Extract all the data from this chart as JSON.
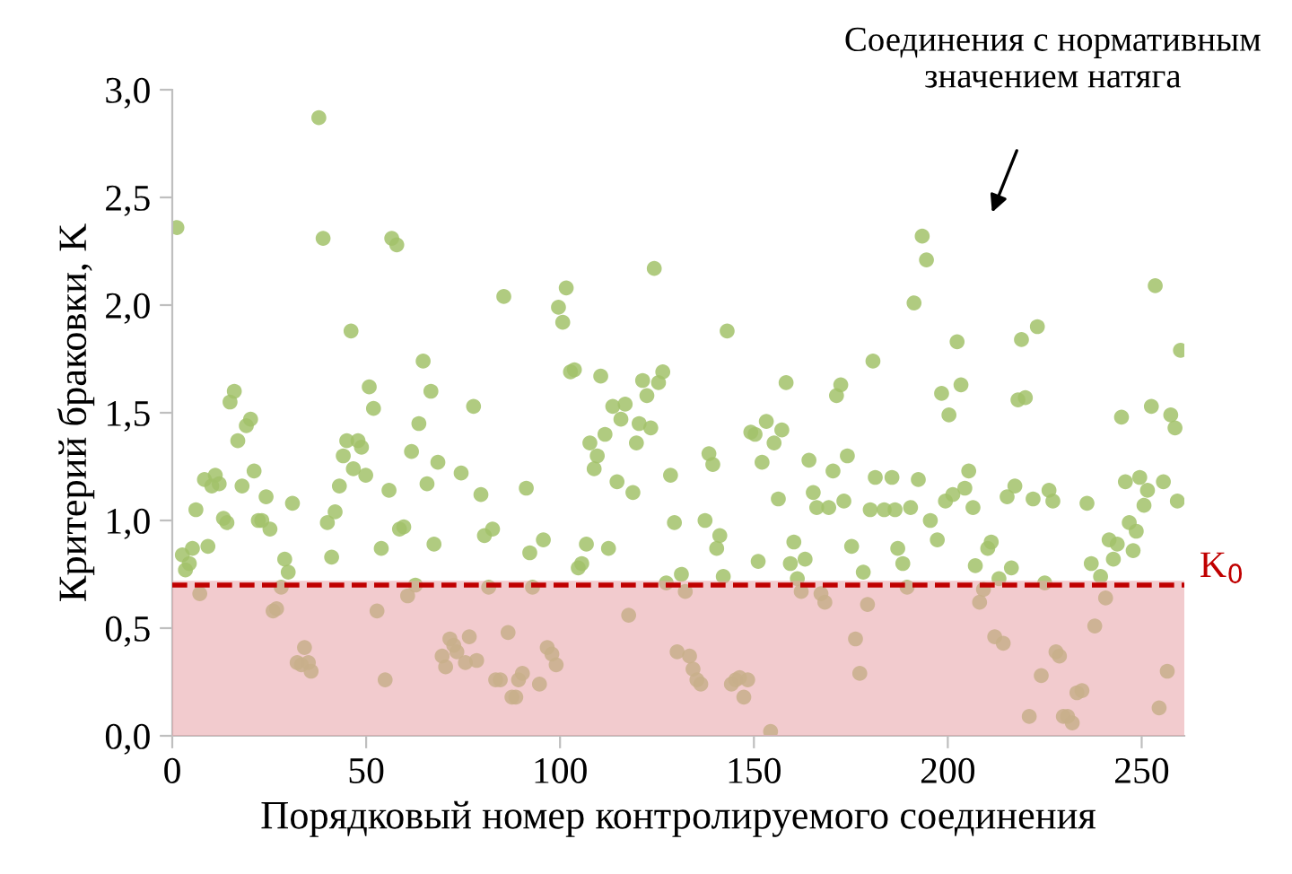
{
  "chart_data": {
    "type": "scatter",
    "xlabel": "Порядковый номер контролируемого соединения",
    "ylabel": "Критерий браковки, K",
    "xlim": [
      0,
      261
    ],
    "xticks": [
      0,
      50,
      100,
      150,
      200,
      250
    ],
    "ylim": [
      0,
      3.0
    ],
    "yticks": [
      {
        "value": 0,
        "label": "0,0"
      },
      {
        "value": 0.5,
        "label": "0,5"
      },
      {
        "value": 1,
        "label": "1,0"
      },
      {
        "value": 1.5,
        "label": "1,5"
      },
      {
        "value": 2,
        "label": "2,0"
      },
      {
        "value": 2.5,
        "label": "2,5"
      },
      {
        "value": 3,
        "label": "3,0"
      }
    ],
    "grid": false,
    "marker": "circle",
    "annotations": [
      "Соединения с нормативным\nзначением натяга"
    ],
    "ref_lines": [
      {
        "axis": "y",
        "value": 0.7,
        "label": "K$_{0}$",
        "color": "#c00000",
        "line_style": "dashed"
      }
    ],
    "bands": [
      {
        "axis": "y",
        "from": 0,
        "to": 0.72,
        "color": "#e8a0a6"
      }
    ],
    "series": [
      {
        "color": "#a2c26a",
        "x": [
          1.2,
          2.6,
          3.4,
          4.4,
          5.2,
          7.1,
          6.1,
          8.3,
          9.2,
          10.2,
          11.1,
          12.1,
          13.2,
          14.1,
          14.9,
          16.0,
          16.9,
          18.0,
          19.1,
          20.2,
          21.1,
          22.2,
          23.1,
          24.2,
          25.2,
          26.0,
          26.9,
          29.0,
          29.9,
          28.1,
          31.0,
          32.2,
          34.1,
          33.3,
          35.1,
          35.8,
          37.8,
          38.9,
          40.0,
          41.1,
          42.0,
          43.1,
          44.1,
          45.0,
          46.1,
          46.7,
          47.9,
          48.8,
          49.9,
          50.8,
          51.9,
          52.8,
          53.9,
          54.9,
          55.9,
          56.6,
          57.9,
          58.6,
          59.7,
          60.7,
          61.7,
          62.7,
          63.6,
          64.7,
          65.7,
          66.7,
          67.5,
          68.5,
          69.6,
          70.5,
          71.6,
          72.6,
          73.4,
          74.5,
          75.6,
          76.6,
          77.7,
          78.5,
          79.6,
          80.5,
          81.6,
          82.6,
          83.4,
          84.6,
          85.5,
          86.6,
          87.6,
          88.6,
          89.3,
          90.3,
          91.3,
          92.2,
          92.9,
          94.7,
          95.7,
          96.7,
          97.9,
          99.0,
          99.6,
          100.7,
          101.6,
          102.7,
          103.7,
          104.7,
          105.6,
          106.8,
          107.7,
          108.8,
          109.6,
          110.5,
          111.6,
          112.5,
          113.6,
          114.7,
          115.7,
          116.8,
          117.7,
          118.8,
          119.7,
          120.4,
          121.3,
          122.4,
          123.4,
          124.3,
          125.4,
          126.5,
          127.4,
          128.5,
          129.5,
          130.2,
          131.3,
          132.3,
          133.4,
          134.3,
          135.3,
          136.3,
          137.4,
          138.4,
          139.4,
          140.4,
          141.2,
          142.1,
          143.1,
          144.2,
          145.3,
          146.3,
          147.4,
          148.4,
          149.2,
          150.3,
          151.1,
          152.1,
          153.2,
          154.3,
          155.2,
          156.3,
          157.2,
          158.3,
          159.4,
          160.3,
          161.2,
          162.2,
          163.2,
          164.2,
          165.3,
          166.2,
          167.3,
          168.3,
          169.3,
          170.4,
          171.3,
          172.4,
          173.2,
          174.1,
          175.2,
          176.2,
          177.3,
          178.2,
          179.3,
          180.0,
          180.7,
          181.3,
          183.6,
          186.4,
          185.6,
          187.1,
          188.4,
          189.5,
          190.4,
          191.3,
          192.4,
          193.4,
          194.5,
          195.5,
          197.3,
          198.4,
          199.4,
          200.3,
          201.3,
          202.4,
          203.4,
          204.4,
          205.4,
          206.5,
          207.1,
          208.2,
          209.2,
          210.3,
          211.2,
          212.1,
          213.2,
          214.3,
          215.3,
          216.4,
          217.3,
          218.1,
          219.0,
          220.0,
          221.0,
          222.0,
          223.1,
          224.1,
          225.0,
          226.1,
          227.1,
          227.9,
          228.8,
          229.8,
          230.9,
          232.1,
          233.3,
          234.6,
          235.9,
          237.0,
          237.9,
          239.4,
          240.7,
          241.6,
          242.7,
          243.7,
          244.8,
          245.8,
          246.8,
          247.8,
          248.6,
          249.5,
          250.6,
          251.5,
          252.5,
          253.5,
          254.5,
          255.6,
          256.6,
          257.5,
          258.6,
          259.2,
          260.0
        ],
        "values": [
          2.36,
          0.84,
          0.77,
          0.8,
          0.87,
          0.66,
          1.05,
          1.19,
          0.88,
          1.16,
          1.21,
          1.17,
          1.01,
          0.99,
          1.55,
          1.6,
          1.37,
          1.16,
          1.44,
          1.47,
          1.23,
          1.0,
          1.0,
          1.11,
          0.96,
          0.58,
          0.59,
          0.82,
          0.76,
          0.69,
          1.08,
          0.34,
          0.41,
          0.33,
          0.34,
          0.3,
          2.87,
          2.31,
          0.99,
          0.83,
          1.04,
          1.16,
          1.3,
          1.37,
          1.88,
          1.24,
          1.37,
          1.34,
          1.21,
          1.62,
          1.52,
          0.58,
          0.87,
          0.26,
          1.14,
          2.31,
          2.28,
          0.96,
          0.97,
          0.65,
          1.32,
          0.7,
          1.45,
          1.74,
          1.17,
          1.6,
          0.89,
          1.27,
          0.37,
          0.32,
          0.45,
          0.42,
          0.39,
          1.22,
          0.34,
          0.46,
          1.53,
          0.35,
          1.12,
          0.93,
          0.69,
          0.96,
          0.26,
          0.26,
          2.04,
          0.48,
          0.18,
          0.18,
          0.26,
          0.29,
          1.15,
          0.85,
          0.69,
          0.24,
          0.91,
          0.41,
          0.38,
          0.33,
          1.99,
          1.92,
          2.08,
          1.69,
          1.7,
          0.78,
          0.8,
          0.89,
          1.36,
          1.24,
          1.3,
          1.67,
          1.4,
          0.87,
          1.53,
          1.18,
          1.47,
          1.54,
          0.56,
          1.13,
          1.36,
          1.45,
          1.65,
          1.58,
          1.43,
          2.17,
          1.64,
          1.69,
          0.71,
          1.21,
          0.99,
          0.39,
          0.75,
          0.67,
          0.37,
          0.31,
          0.26,
          0.24,
          1.0,
          1.31,
          1.26,
          0.87,
          0.93,
          0.74,
          1.88,
          0.24,
          0.26,
          0.27,
          0.18,
          0.26,
          1.41,
          1.4,
          0.81,
          1.27,
          1.46,
          0.02,
          1.36,
          1.1,
          1.42,
          1.64,
          0.8,
          0.9,
          0.73,
          0.67,
          0.82,
          1.28,
          1.13,
          1.06,
          0.66,
          0.62,
          1.06,
          1.23,
          1.58,
          1.63,
          1.09,
          1.3,
          0.88,
          0.45,
          0.29,
          0.76,
          0.61,
          1.05,
          1.74,
          1.2,
          1.05,
          1.05,
          1.2,
          0.87,
          0.8,
          0.69,
          1.06,
          2.01,
          1.19,
          2.32,
          2.21,
          1.0,
          0.91,
          1.59,
          1.09,
          1.49,
          1.12,
          1.83,
          1.63,
          1.15,
          1.23,
          1.06,
          0.79,
          0.62,
          0.68,
          0.87,
          0.9,
          0.46,
          0.73,
          0.43,
          1.11,
          0.78,
          1.16,
          1.56,
          1.84,
          1.57,
          0.09,
          1.1,
          1.9,
          0.28,
          0.71,
          1.14,
          1.09,
          0.39,
          0.37,
          0.09,
          0.09,
          0.06,
          0.2,
          0.21,
          1.08,
          0.8,
          0.51,
          0.74,
          0.64,
          0.91,
          0.82,
          0.89,
          1.48,
          1.18,
          0.99,
          0.86,
          0.95,
          1.2,
          1.07,
          1.14,
          1.53,
          2.09,
          0.13,
          1.18,
          0.3,
          1.49,
          1.43,
          1.09,
          1.79
        ]
      }
    ]
  }
}
